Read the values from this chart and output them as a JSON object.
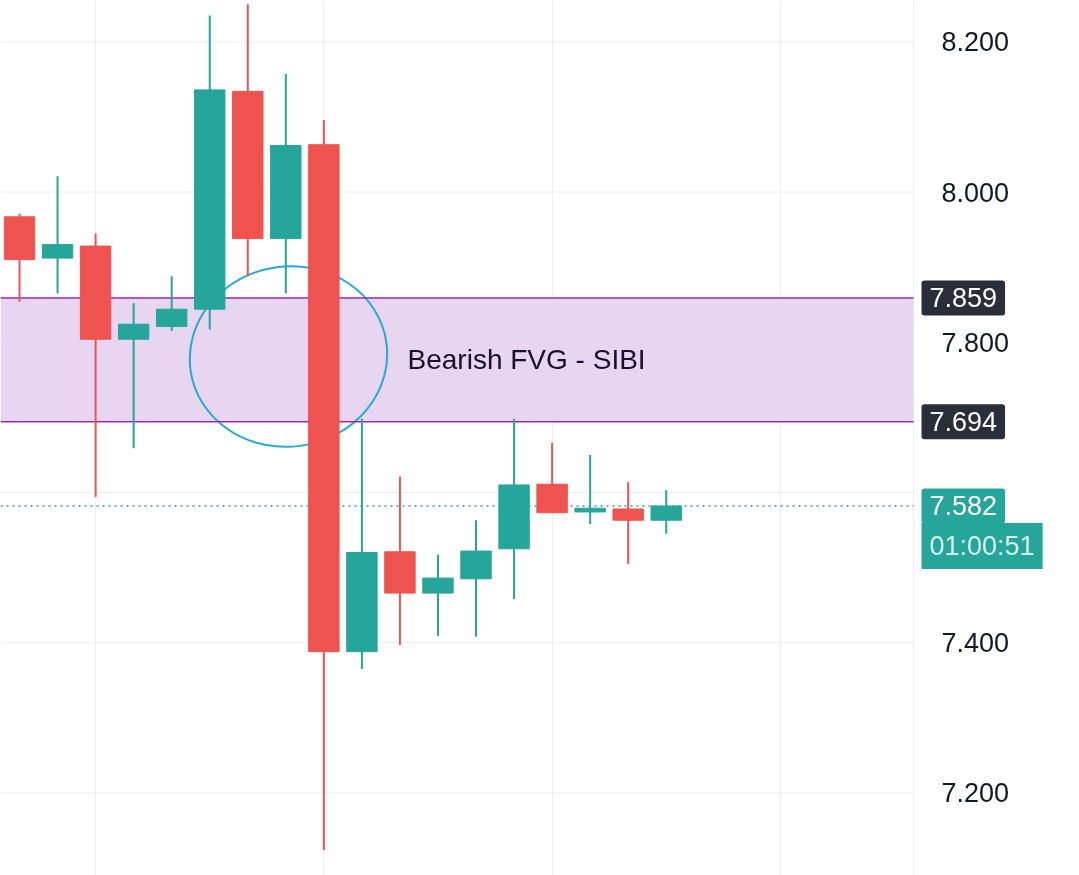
{
  "chart_data": {
    "type": "candlestick",
    "categories": [
      null,
      null,
      null,
      null,
      null,
      null,
      null,
      null,
      null,
      null,
      null,
      null,
      null,
      null,
      null,
      null,
      null,
      null,
      null,
      null,
      null,
      null,
      null,
      null
    ],
    "ohlc": [
      [
        7.967,
        7.971,
        7.854,
        7.91
      ],
      [
        7.912,
        8.021,
        7.865,
        7.93
      ],
      [
        7.928,
        7.945,
        7.594,
        7.804
      ],
      [
        7.804,
        7.852,
        7.659,
        7.824
      ],
      [
        7.821,
        7.888,
        7.815,
        7.844
      ],
      [
        7.844,
        8.235,
        7.817,
        8.136
      ],
      [
        8.134,
        8.25,
        7.888,
        7.938
      ],
      [
        7.938,
        8.157,
        7.865,
        8.062
      ],
      [
        8.063,
        8.096,
        7.124,
        7.388
      ],
      [
        7.388,
        7.698,
        7.365,
        7.52
      ],
      [
        7.521,
        7.621,
        7.397,
        7.466
      ],
      [
        7.466,
        7.517,
        7.409,
        7.486
      ],
      [
        7.485,
        7.563,
        7.408,
        7.522
      ],
      [
        7.525,
        7.698,
        7.458,
        7.61
      ],
      [
        7.611,
        7.666,
        7.573,
        7.573
      ],
      [
        7.574,
        7.65,
        7.558,
        7.579
      ],
      [
        7.578,
        7.614,
        7.505,
        7.563
      ],
      [
        7.563,
        7.603,
        7.545,
        7.582
      ],
      null,
      null,
      null,
      null,
      null,
      null
    ],
    "colors": [
      "#ef5350",
      "#26a69a",
      "#ef5350",
      "#26a69a",
      "#26a69a",
      "#26a69a",
      "#ef5350",
      "#26a69a",
      "#ef5350",
      "#26a69a",
      "#ef5350",
      "#26a69a",
      "#26a69a",
      "#26a69a",
      "#ef5350",
      "#26a69a",
      "#ef5350",
      "#26a69a",
      null,
      null,
      null,
      null,
      null,
      null
    ],
    "ylim": [
      7.09,
      8.255
    ],
    "yticks": [
      {
        "value": 7.2,
        "label": "7.200"
      },
      {
        "value": 7.4,
        "label": "7.400"
      },
      {
        "value": 7.6,
        "label": null
      },
      {
        "value": 7.8,
        "label": "7.800"
      },
      {
        "value": 8.0,
        "label": "8.000"
      },
      {
        "value": 8.2,
        "label": "8.200"
      }
    ],
    "grid": true,
    "bands": [
      {
        "axis": "y",
        "from": 7.694,
        "to": 7.859,
        "label": "Bearish FVG - SIBI",
        "color": "#e8d5ef"
      }
    ],
    "ref_lines": [
      {
        "axis": "y",
        "value": 7.859,
        "label": "7.859",
        "color": "#9c27b0",
        "line_style": "solid"
      },
      {
        "axis": "y",
        "value": 7.694,
        "label": "7.694",
        "color": "#9c27b0",
        "line_style": "solid"
      },
      {
        "axis": "y",
        "value": 7.582,
        "label": "7.582",
        "color": "#26a69a",
        "line_style": "dotted"
      }
    ],
    "annotations": [
      "01:00:51"
    ]
  }
}
